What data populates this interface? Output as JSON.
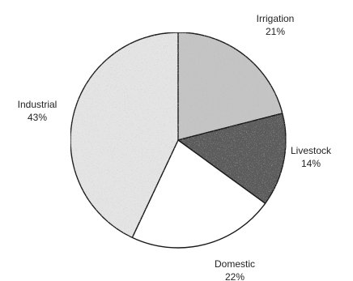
{
  "chart_data": {
    "type": "pie",
    "slices": [
      {
        "label": "Irrigation",
        "value": 21,
        "value_text": "21%",
        "color": "#c4c4c4"
      },
      {
        "label": "Livestock",
        "value": 14,
        "value_text": "14%",
        "color": "#5b5b5b"
      },
      {
        "label": "Domestic",
        "value": 22,
        "value_text": "22%",
        "color": "#ffffff"
      },
      {
        "label": "Industrial",
        "value": 43,
        "value_text": "43%",
        "color": "#e4e4e4"
      }
    ],
    "legend": "none"
  }
}
